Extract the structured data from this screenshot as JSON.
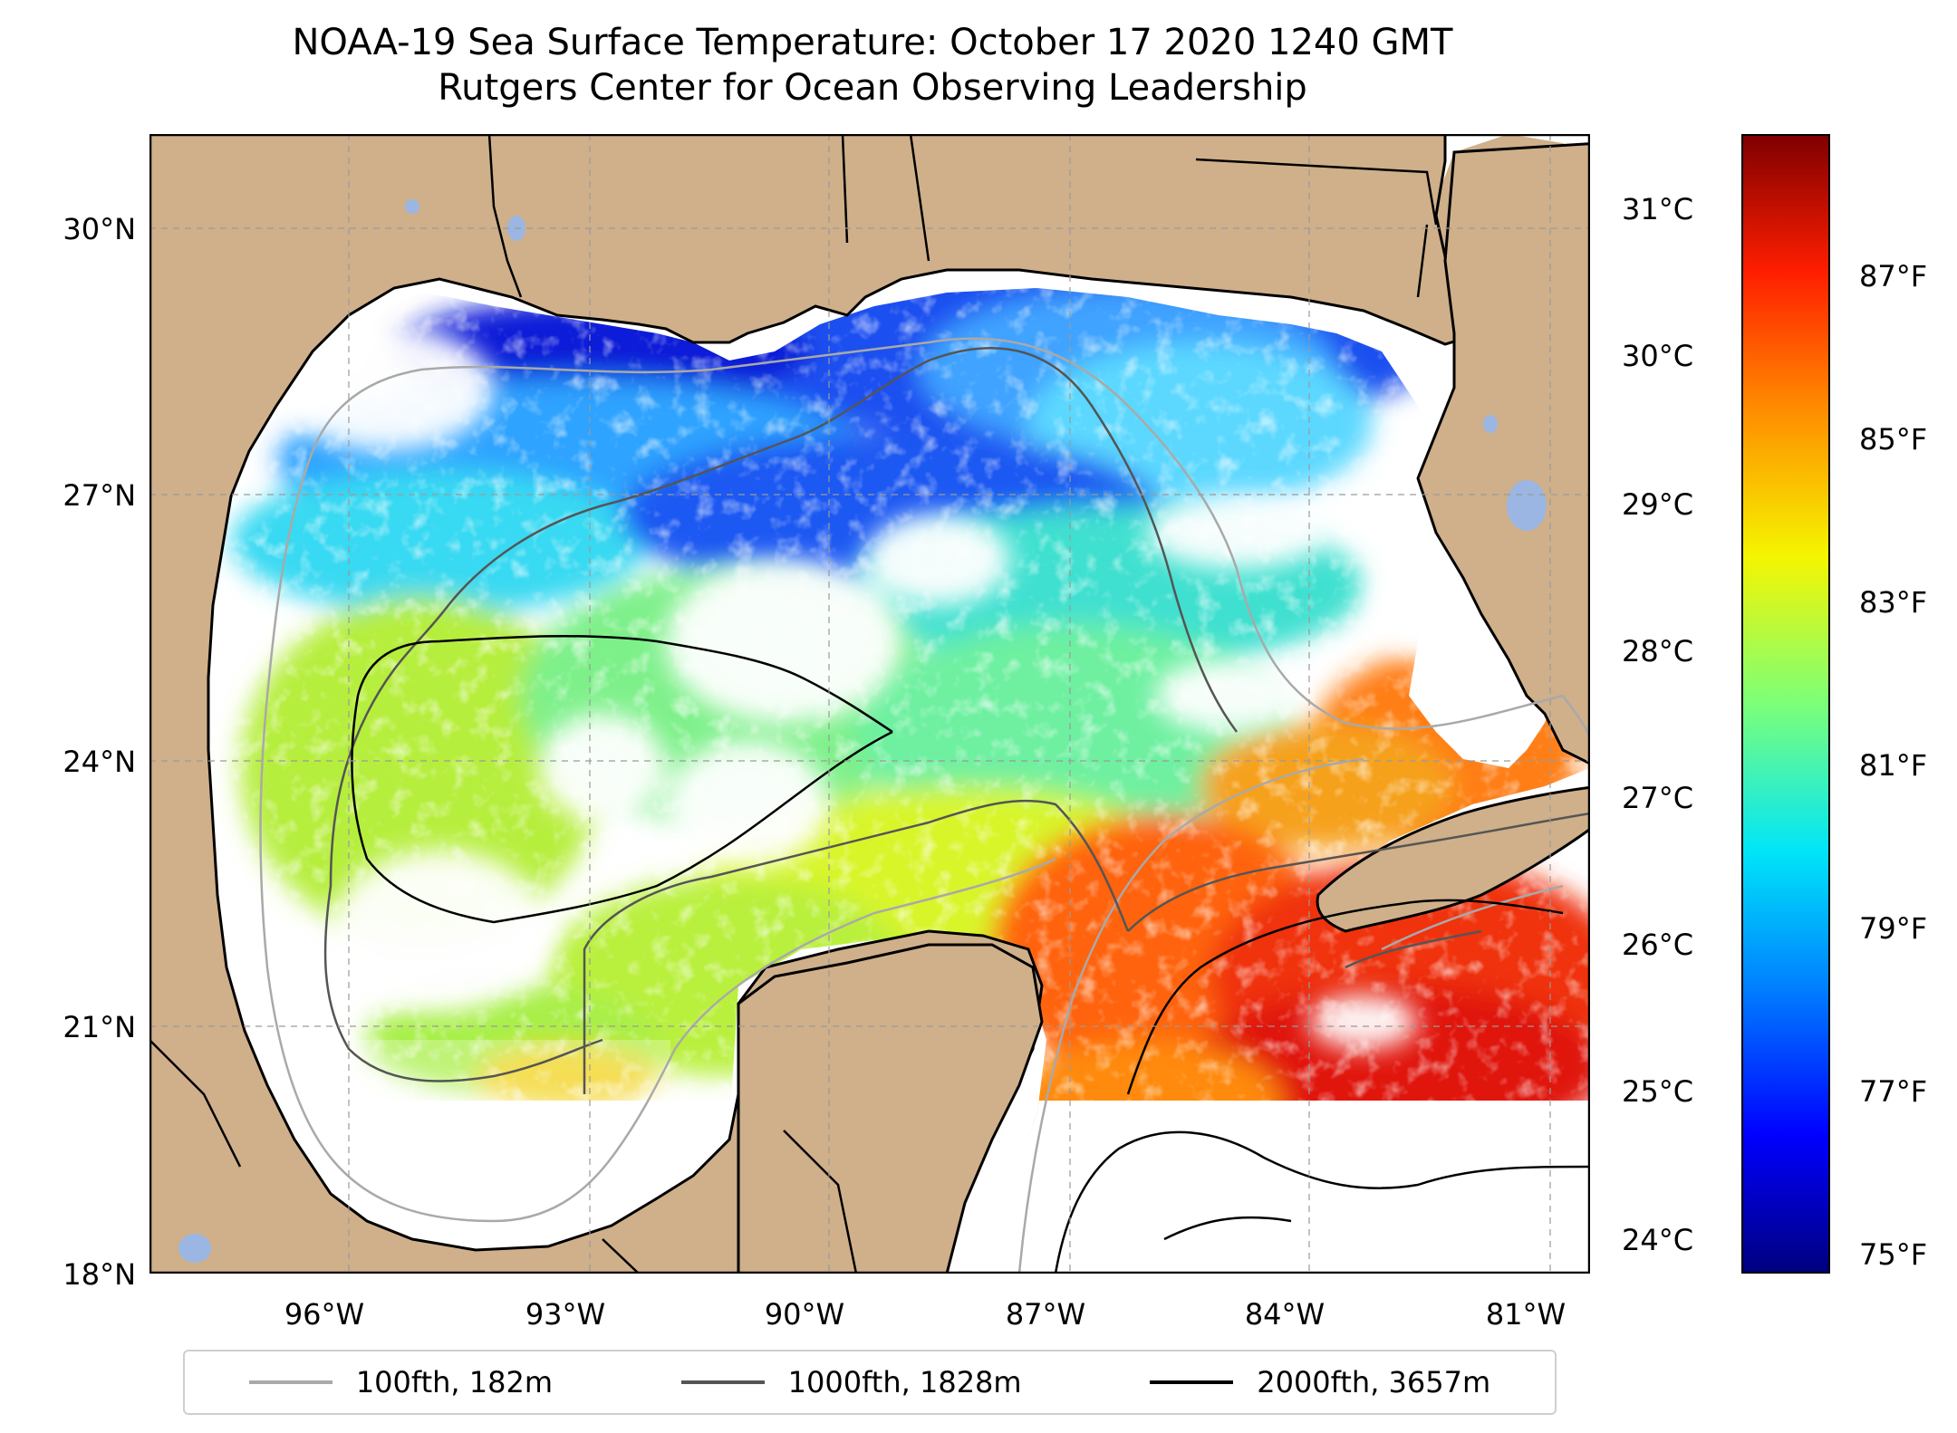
{
  "title": {
    "line1": "NOAA-19 Sea Surface Temperature: October 17 2020 1240 GMT",
    "line2": "Rutgers Center for Ocean Observing Leadership"
  },
  "map": {
    "region": "Gulf of Mexico",
    "lat_range": [
      18,
      31
    ],
    "lon_range": [
      -98.3,
      -80.7
    ],
    "lat_ticks": [
      "30°N",
      "27°N",
      "24°N",
      "21°N",
      "18°N"
    ],
    "lon_ticks": [
      "96°W",
      "93°W",
      "90°W",
      "87°W",
      "84°W",
      "81°W"
    ],
    "land_color": "#cfb08a",
    "lake_color": "#9bb6e2"
  },
  "colorbar": {
    "celsius_ticks": [
      "31°C",
      "30°C",
      "29°C",
      "28°C",
      "27°C",
      "26°C",
      "25°C",
      "24°C"
    ],
    "fahrenheit_ticks": [
      "87°F",
      "85°F",
      "83°F",
      "81°F",
      "79°F",
      "77°F",
      "75°F"
    ],
    "colormap": "jet"
  },
  "legend": [
    {
      "label": "100fth, 182m",
      "color": "#a9a9a9"
    },
    {
      "label": "1000fth, 1828m",
      "color": "#555555"
    },
    {
      "label": "2000fth, 3657m",
      "color": "#000000"
    }
  ]
}
